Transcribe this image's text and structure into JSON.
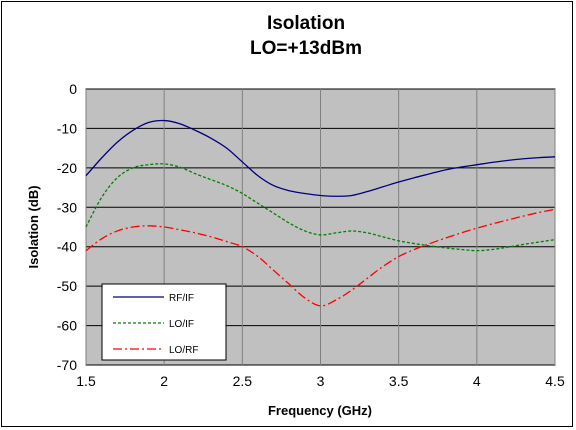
{
  "chart_data": {
    "type": "line",
    "title": "Isolation",
    "subtitle": "LO=+13dBm",
    "xlabel": "Frequency (GHz)",
    "ylabel": "Isolation (dB)",
    "xlim": [
      1.5,
      4.5
    ],
    "ylim": [
      -70,
      0
    ],
    "xticks": [
      1.5,
      2,
      2.5,
      3,
      3.5,
      4,
      4.5
    ],
    "xtick_labels": [
      "1.5",
      "2",
      "2.5",
      "3",
      "3.5",
      "4",
      "4.5"
    ],
    "yticks": [
      0,
      -10,
      -20,
      -30,
      -40,
      -50,
      -60,
      -70
    ],
    "ytick_labels": [
      "0",
      "-10",
      "-20",
      "-30",
      "-40",
      "-50",
      "-60",
      "-70"
    ],
    "grid": true,
    "plot_background": "#c0c0c0",
    "legend_position": "bottom-left",
    "series": [
      {
        "name": "RF/IF",
        "color": "#000080",
        "dash": "solid",
        "x": [
          1.5,
          1.6,
          1.7,
          1.8,
          1.9,
          2.0,
          2.1,
          2.2,
          2.3,
          2.4,
          2.5,
          2.6,
          2.7,
          2.8,
          2.9,
          3.0,
          3.1,
          3.2,
          3.3,
          3.4,
          3.5,
          3.6,
          3.7,
          3.8,
          3.9,
          4.0,
          4.1,
          4.2,
          4.3,
          4.4,
          4.5
        ],
        "y": [
          -22,
          -17.5,
          -13.5,
          -10.5,
          -8.5,
          -8,
          -8.8,
          -10.5,
          -12.5,
          -15,
          -18.5,
          -22,
          -24.5,
          -25.8,
          -26.5,
          -27,
          -27.2,
          -27,
          -26,
          -24.8,
          -23.6,
          -22.5,
          -21.5,
          -20.5,
          -19.8,
          -19.2,
          -18.6,
          -18.1,
          -17.7,
          -17.4,
          -17.2
        ]
      },
      {
        "name": "LO/IF",
        "color": "#008000",
        "dash": "dashed",
        "x": [
          1.5,
          1.6,
          1.7,
          1.8,
          1.9,
          2.0,
          2.1,
          2.2,
          2.3,
          2.4,
          2.5,
          2.6,
          2.7,
          2.8,
          2.9,
          3.0,
          3.1,
          3.2,
          3.3,
          3.4,
          3.5,
          3.6,
          3.7,
          3.8,
          3.9,
          4.0,
          4.1,
          4.2,
          4.3,
          4.4,
          4.5
        ],
        "y": [
          -35,
          -27.5,
          -22.5,
          -20,
          -19.2,
          -19,
          -19.8,
          -21.5,
          -23,
          -24.5,
          -26.5,
          -29,
          -31.5,
          -34,
          -36,
          -37,
          -36.5,
          -36,
          -36.5,
          -37.5,
          -38.5,
          -39.2,
          -39.8,
          -40.3,
          -40.7,
          -41,
          -40.7,
          -40.1,
          -39.4,
          -38.8,
          -38.2
        ]
      },
      {
        "name": "LO/RF",
        "color": "#ff0000",
        "dash": "dashdot",
        "x": [
          1.5,
          1.6,
          1.7,
          1.8,
          1.9,
          2.0,
          2.1,
          2.2,
          2.3,
          2.4,
          2.5,
          2.6,
          2.7,
          2.8,
          2.9,
          3.0,
          3.1,
          3.2,
          3.3,
          3.4,
          3.5,
          3.6,
          3.7,
          3.8,
          3.9,
          4.0,
          4.1,
          4.2,
          4.3,
          4.4,
          4.5
        ],
        "y": [
          -41,
          -38,
          -36,
          -35,
          -34.7,
          -35,
          -35.7,
          -36.5,
          -37.5,
          -38.7,
          -40,
          -42.5,
          -46,
          -49.5,
          -53,
          -55,
          -53.5,
          -51,
          -48,
          -45,
          -42.5,
          -40.7,
          -39.2,
          -37.8,
          -36.5,
          -35.3,
          -34.2,
          -33.2,
          -32.2,
          -31.3,
          -30.5
        ]
      }
    ]
  }
}
